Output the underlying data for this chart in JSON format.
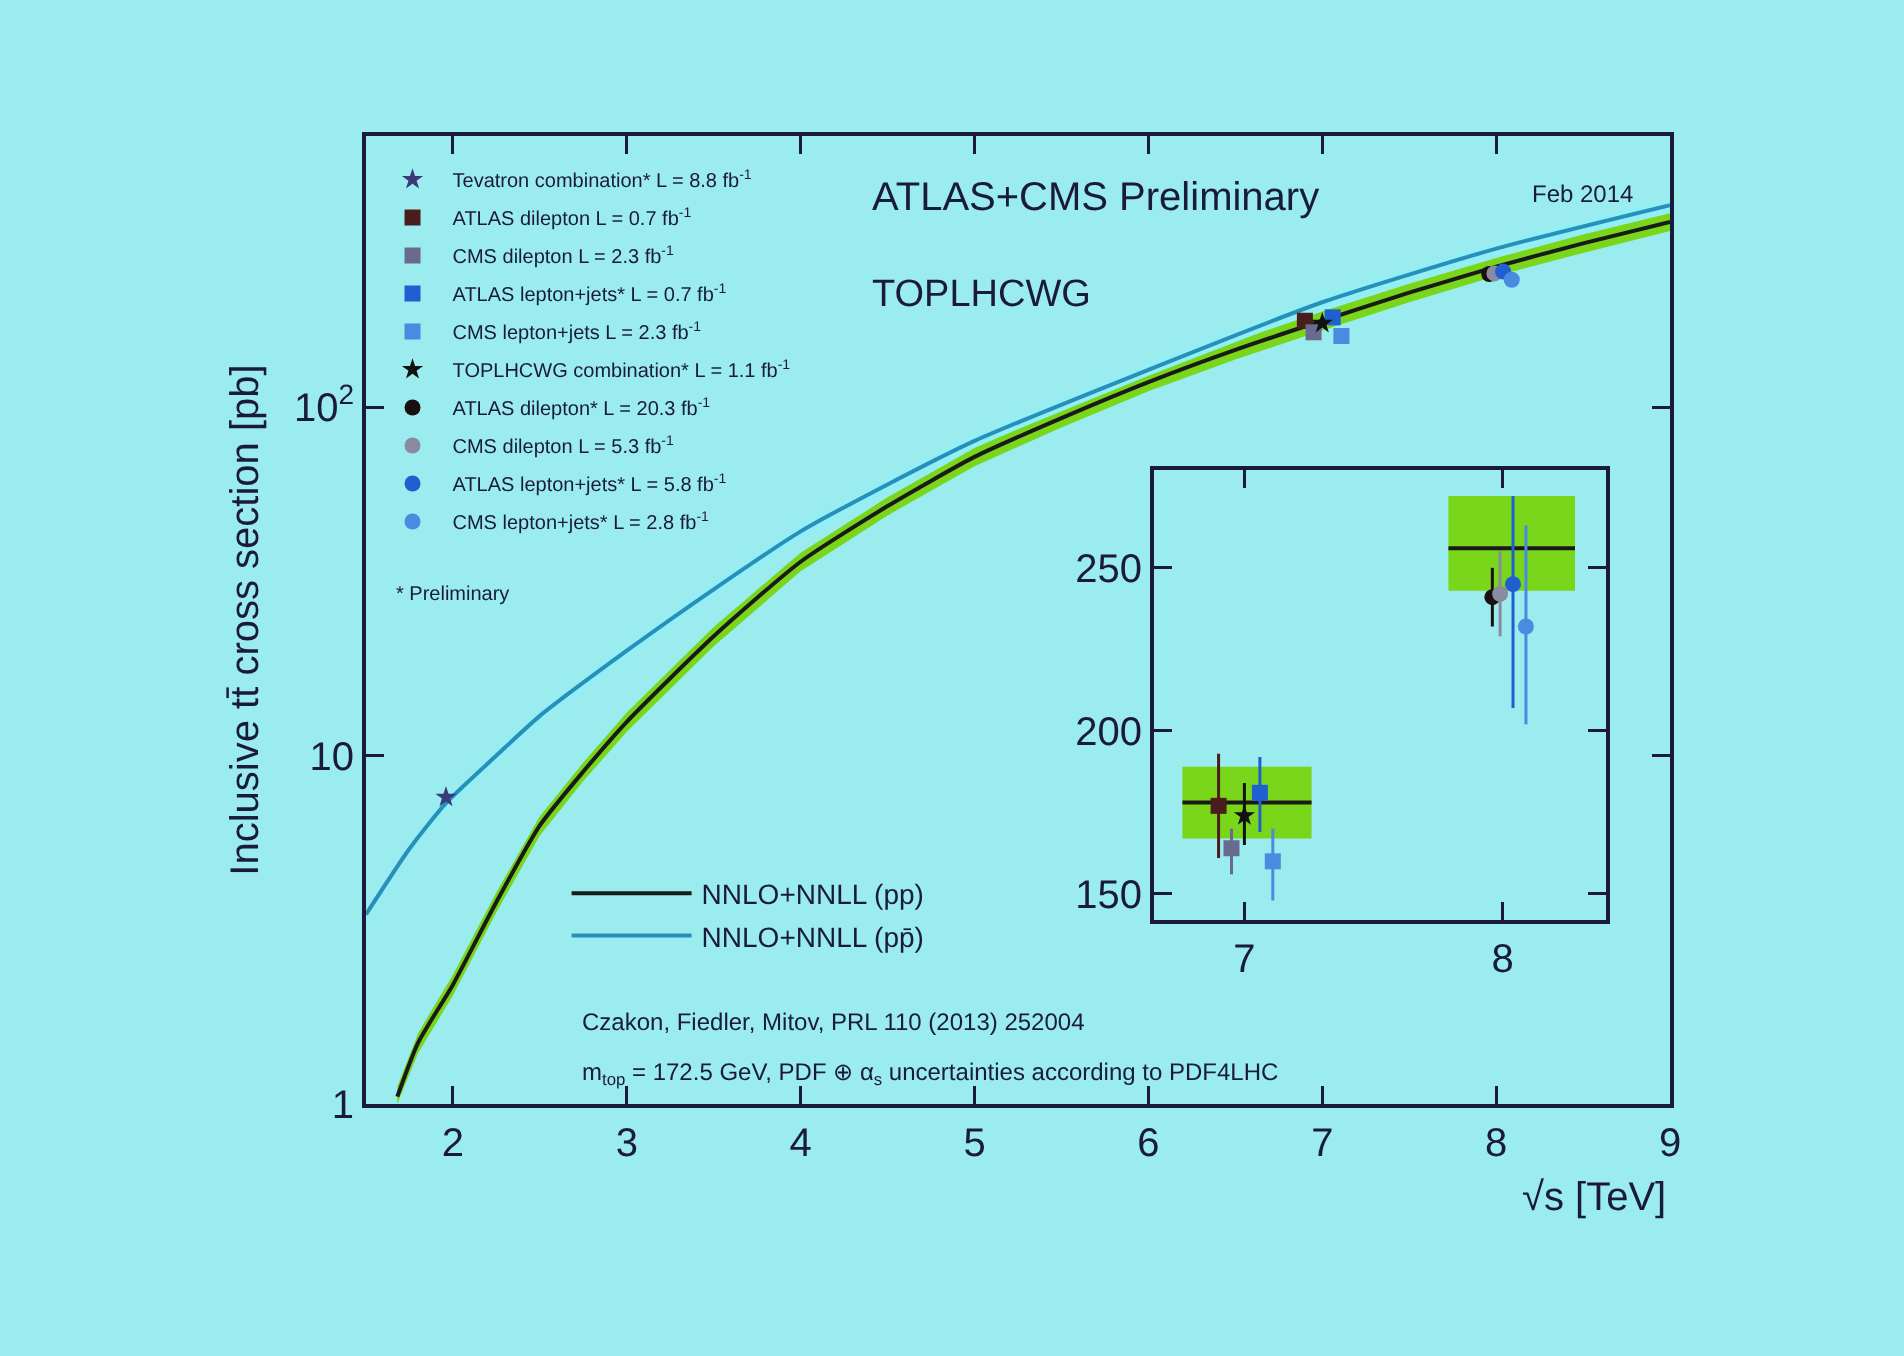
{
  "chart_data": [
    {
      "type": "scatter",
      "ylabel": "Inclusive tt̄ cross section [pb]",
      "xlabel": "√s [TeV]",
      "xlim": [
        1.5,
        9
      ],
      "xticks": [
        2,
        3,
        4,
        5,
        6,
        7,
        8,
        9
      ],
      "ylim": [
        1,
        600
      ],
      "yticks": [
        1,
        10,
        {
          "value": 100,
          "label": "10$^{2}$"
        }
      ],
      "log": "y",
      "grid": false,
      "legend": "top left",
      "annotations": [
        "ATLAS+CMS Preliminary",
        "TOPLHCWG",
        "Feb 2014",
        "* Preliminary",
        "Czakon, Fiedler, Mitov, PRL 110 (2013) 252004",
        "m$_{top}$ = 172.5 GeV, PDF ⊕ α$_{s}$ uncertainties according to PDF4LHC"
      ],
      "series": [
        {
          "name": "NNLO+NNLL (pp)",
          "type": "line",
          "color": "#1a1a1a",
          "x": [
            1.68,
            1.8,
            2,
            2.25,
            2.5,
            2.75,
            3,
            3.5,
            4,
            4.5,
            5,
            5.5,
            6,
            6.5,
            7,
            7.5,
            8,
            8.5,
            9
          ],
          "values": [
            1.05,
            1.5,
            2.2,
            3.8,
            6.3,
            9,
            12.5,
            22,
            36,
            52,
            72,
            93,
            118,
            146,
            177,
            213,
            253,
            295,
            340
          ],
          "lower": [
            1.0,
            1.4,
            2.05,
            3.55,
            5.9,
            8.45,
            11.7,
            20.6,
            33.8,
            48.9,
            67.7,
            87.4,
            111,
            137,
            166,
            200,
            238,
            277,
            320
          ],
          "upper": [
            1.12,
            1.6,
            2.35,
            4.05,
            6.7,
            9.55,
            13.3,
            23.4,
            38.2,
            55.1,
            76.3,
            98.6,
            125,
            155,
            188,
            226,
            268,
            313,
            360
          ]
        },
        {
          "name": "NNLO+NNLL (pp̄)",
          "type": "line",
          "color": "#2a8fb8",
          "x": [
            1.5,
            1.75,
            1.96,
            2.25,
            2.5,
            3,
            3.5,
            4,
            4.5,
            5,
            6,
            7,
            8,
            9
          ],
          "values": [
            3.5,
            5.4,
            7.3,
            10,
            13,
            20,
            30,
            44,
            60,
            80,
            128,
            200,
            285,
            380
          ],
          "lower": [
            3.36,
            5.18,
            7.0,
            9.6,
            12.5,
            19.2,
            28.8,
            42.2,
            57.6,
            76.8,
            123,
            192,
            274,
            365
          ],
          "upper": [
            3.64,
            5.62,
            7.6,
            10.4,
            13.5,
            20.8,
            31.2,
            45.8,
            62.4,
            83.2,
            133,
            208,
            296,
            395
          ]
        },
        {
          "name": "Tevatron combination* L = 8.8 fb$^{-1}$",
          "color": "#3a3a7a",
          "marker": "star",
          "x": [
            1.96
          ],
          "values": [
            7.6
          ]
        },
        {
          "name": "ATLAS dilepton L = 0.7 fb$^{-1}$",
          "color": "#4a1c1c",
          "marker": "square",
          "x": [
            6.9
          ],
          "values": [
            177
          ]
        },
        {
          "name": "CMS dilepton L = 2.3 fb$^{-1}$",
          "color": "#6a6a90",
          "marker": "square",
          "x": [
            6.95
          ],
          "values": [
            164
          ]
        },
        {
          "name": "ATLAS lepton+jets* L = 0.7 fb$^{-1}$",
          "color": "#1f5fd0",
          "marker": "square",
          "x": [
            7.06
          ],
          "values": [
            181
          ]
        },
        {
          "name": "CMS lepton+jets L = 2.3 fb$^{-1}$",
          "color": "#4a8ae0",
          "marker": "square",
          "x": [
            7.11
          ],
          "values": [
            160
          ]
        },
        {
          "name": "TOPLHCWG combination* L = 1.1 fb$^{-1}$",
          "color": "#111111",
          "marker": "star",
          "x": [
            7.0
          ],
          "values": [
            174
          ]
        },
        {
          "name": "ATLAS dilepton* L = 20.3 fb$^{-1}$",
          "color": "#1a1010",
          "marker": "circle",
          "x": [
            7.96
          ],
          "values": [
            241
          ]
        },
        {
          "name": "CMS dilepton L = 5.3 fb$^{-1}$",
          "color": "#8a8aa0",
          "marker": "circle",
          "x": [
            7.99
          ],
          "values": [
            242
          ]
        },
        {
          "name": "ATLAS lepton+jets* L = 5.8 fb$^{-1}$",
          "color": "#1f5fd0",
          "marker": "circle",
          "x": [
            8.04
          ],
          "values": [
            245
          ]
        },
        {
          "name": "CMS lepton+jets* L = 2.8 fb$^{-1}$",
          "color": "#4a8ae0",
          "marker": "circle",
          "x": [
            8.09
          ],
          "values": [
            232
          ]
        }
      ]
    },
    {
      "type": "scatter",
      "xlim": [
        6.65,
        8.4
      ],
      "xticks": [
        7,
        8
      ],
      "ylim": [
        142,
        280
      ],
      "yticks": [
        150,
        200,
        250
      ],
      "grid": false,
      "legend": false,
      "series": [
        {
          "type": "line",
          "color": "#1a1a1a",
          "x": [
            6.76,
            7.26
          ],
          "values": [
            178,
            178
          ],
          "lower": [
            167,
            167
          ],
          "upper": [
            189,
            189
          ]
        },
        {
          "type": "line",
          "color": "#1a1a1a",
          "x": [
            7.79,
            8.28
          ],
          "values": [
            256,
            256
          ],
          "lower": [
            243,
            243
          ],
          "upper": [
            272,
            272
          ]
        },
        {
          "color": "#4a1c1c",
          "marker": "square",
          "x": [
            6.9
          ],
          "values": [
            177
          ],
          "errors": [
            [
              161,
              193
            ]
          ]
        },
        {
          "color": "#6a6a90",
          "marker": "square",
          "x": [
            6.95
          ],
          "values": [
            164
          ],
          "errors": [
            [
              156,
              170
            ]
          ]
        },
        {
          "color": "#1f5fd0",
          "marker": "square",
          "x": [
            7.06
          ],
          "values": [
            181
          ],
          "errors": [
            [
              169,
              192
            ]
          ]
        },
        {
          "color": "#4a8ae0",
          "marker": "square",
          "x": [
            7.11
          ],
          "values": [
            160
          ],
          "errors": [
            [
              148,
              170
            ]
          ]
        },
        {
          "color": "#111111",
          "marker": "star",
          "x": [
            7.0
          ],
          "values": [
            174
          ],
          "errors": [
            [
              165,
              184
            ]
          ]
        },
        {
          "color": "#1a1010",
          "marker": "circle",
          "x": [
            7.96
          ],
          "values": [
            241
          ],
          "errors": [
            [
              232,
              250
            ]
          ]
        },
        {
          "color": "#8a8aa0",
          "marker": "circle",
          "x": [
            7.99
          ],
          "values": [
            242
          ],
          "errors": [
            [
              229,
              255
            ]
          ]
        },
        {
          "color": "#1f5fd0",
          "marker": "circle",
          "x": [
            8.04
          ],
          "values": [
            245
          ],
          "errors": [
            [
              207,
              272
            ]
          ]
        },
        {
          "color": "#4a8ae0",
          "marker": "circle",
          "x": [
            8.09
          ],
          "values": [
            232
          ],
          "errors": [
            [
              202,
              263
            ]
          ]
        }
      ]
    }
  ]
}
